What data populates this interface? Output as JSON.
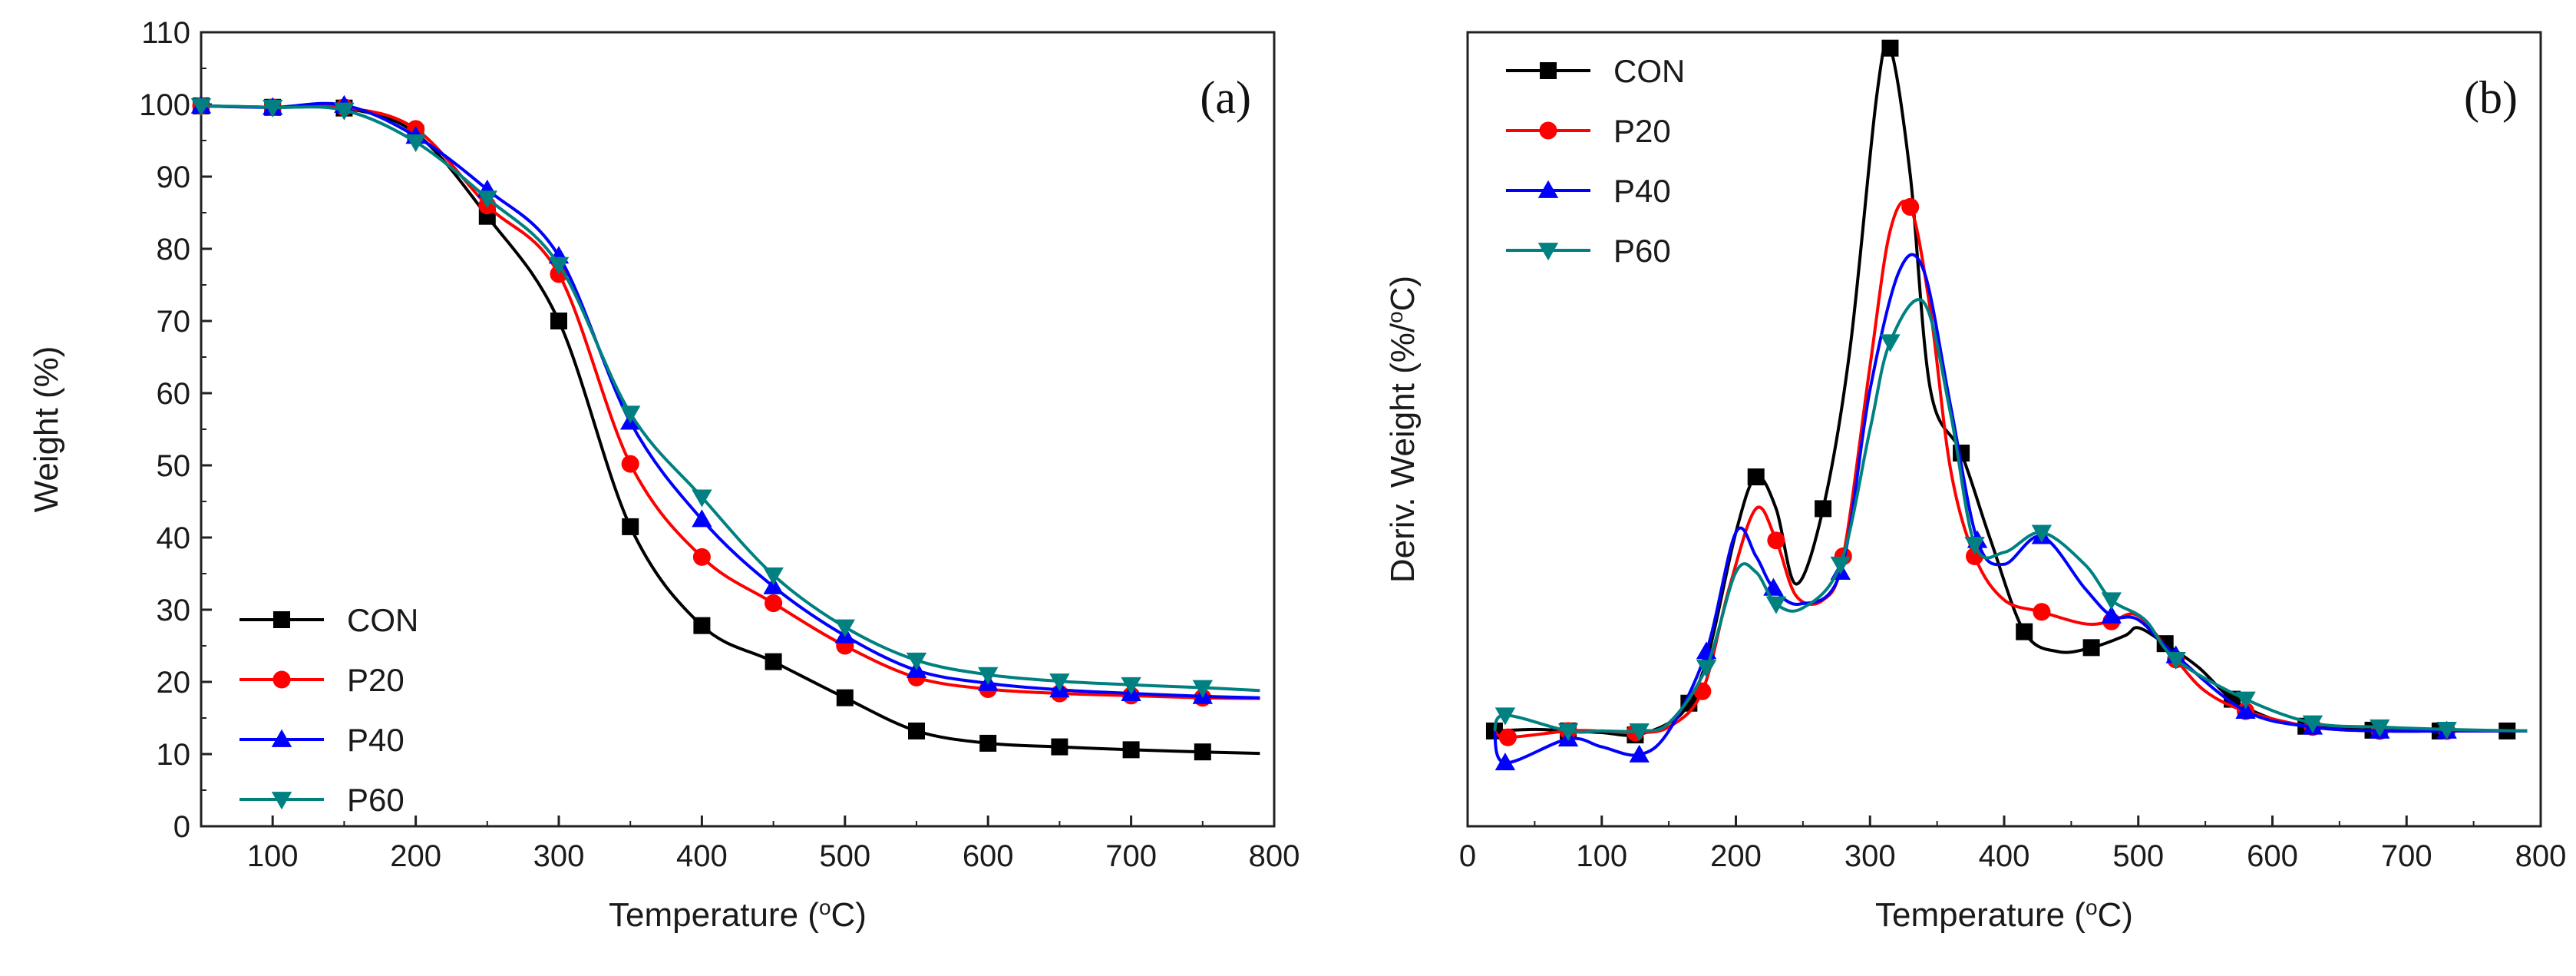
{
  "chart_data": [
    {
      "type": "line",
      "panel": "(a)",
      "xlabel": "Temperature (°C)",
      "ylabel": "Weight (%)",
      "xlim": [
        50,
        800
      ],
      "ylim": [
        0,
        110
      ],
      "xticks": [
        100,
        200,
        300,
        400,
        500,
        600,
        700,
        800
      ],
      "yticks": [
        0,
        10,
        20,
        30,
        40,
        50,
        60,
        70,
        80,
        90,
        100,
        110
      ],
      "legend_position": "bottom-left",
      "series": [
        {
          "name": "CON",
          "color": "#000000",
          "marker": "square",
          "x": [
            50,
            100,
            150,
            200,
            250,
            300,
            350,
            400,
            450,
            500,
            550,
            600,
            650,
            700,
            750,
            790
          ],
          "values": [
            99.8,
            99.6,
            99.5,
            96.0,
            84.5,
            70.0,
            41.5,
            27.8,
            22.8,
            17.8,
            13.2,
            11.5,
            11.0,
            10.6,
            10.3,
            10.1
          ]
        },
        {
          "name": "P20",
          "color": "#ff0000",
          "marker": "circle",
          "x": [
            50,
            100,
            150,
            200,
            250,
            300,
            350,
            400,
            450,
            500,
            550,
            600,
            650,
            700,
            750,
            790
          ],
          "values": [
            99.8,
            99.6,
            99.6,
            96.6,
            86.0,
            76.5,
            50.2,
            37.3,
            30.9,
            25.0,
            20.6,
            19.0,
            18.4,
            18.1,
            17.8,
            17.7
          ]
        },
        {
          "name": "P40",
          "color": "#0000ff",
          "marker": "triangle-up",
          "x": [
            50,
            100,
            150,
            200,
            250,
            300,
            350,
            400,
            450,
            500,
            550,
            600,
            650,
            700,
            750,
            790
          ],
          "values": [
            99.8,
            99.6,
            99.9,
            95.6,
            88.2,
            79.0,
            56.0,
            42.5,
            33.2,
            26.4,
            21.6,
            19.8,
            18.9,
            18.4,
            18.0,
            17.8
          ]
        },
        {
          "name": "P60",
          "color": "#008080",
          "marker": "triangle-down",
          "x": [
            50,
            100,
            150,
            200,
            250,
            300,
            350,
            400,
            450,
            500,
            550,
            600,
            650,
            700,
            750,
            790
          ],
          "values": [
            99.8,
            99.6,
            99.2,
            94.8,
            87.0,
            77.8,
            57.2,
            45.6,
            34.8,
            27.6,
            23.0,
            21.0,
            20.1,
            19.6,
            19.2,
            18.8
          ]
        }
      ]
    },
    {
      "type": "line",
      "panel": "(b)",
      "xlabel": "Temperature (°C)",
      "ylabel": "Deriv. Weight (%/°C)",
      "xlim": [
        0,
        800
      ],
      "ylim": [
        0,
        100
      ],
      "xticks": [
        0,
        100,
        200,
        300,
        400,
        500,
        600,
        700,
        800
      ],
      "yticks": [],
      "legend_position": "top-left",
      "series": [
        {
          "name": "CON",
          "color": "#000000",
          "marker": "square",
          "x": [
            20,
            50,
            75,
            100,
            125,
            150,
            165,
            180,
            200,
            215,
            230,
            245,
            265,
            285,
            305,
            315,
            330,
            345,
            368,
            390,
            415,
            440,
            465,
            490,
            500,
            520,
            545,
            570,
            600,
            625,
            650,
            675,
            700,
            725,
            750,
            775,
            790
          ],
          "values": [
            12,
            12.2,
            12,
            11.8,
            11.5,
            13,
            15.5,
            22,
            37,
            44,
            40,
            30.5,
            40,
            60,
            92,
            98,
            82,
            55,
            47,
            36,
            24.5,
            22,
            22.5,
            24,
            25,
            23,
            20,
            16,
            13.5,
            12.6,
            12.3,
            12.1,
            12,
            12,
            12,
            12,
            12
          ]
        },
        {
          "name": "P20",
          "color": "#ff0000",
          "marker": "circle",
          "x": [
            20,
            30,
            75,
            100,
            125,
            150,
            175,
            195,
            215,
            230,
            245,
            265,
            280,
            300,
            315,
            330,
            345,
            360,
            378,
            400,
            428,
            460,
            480,
            500,
            528,
            550,
            580,
            630,
            680,
            730,
            790
          ],
          "values": [
            12,
            11.2,
            12,
            12,
            11.8,
            12.5,
            17,
            30,
            40,
            36,
            29,
            28.5,
            34,
            58,
            75,
            78,
            65,
            45,
            34,
            28.5,
            27,
            25.5,
            25.8,
            26.5,
            21,
            17,
            14.5,
            12.5,
            12,
            12,
            12
          ]
        },
        {
          "name": "P40",
          "color": "#0000ff",
          "marker": "triangle-up",
          "x": [
            20,
            28,
            75,
            100,
            128,
            150,
            178,
            200,
            215,
            228,
            248,
            278,
            300,
            322,
            340,
            360,
            380,
            400,
            428,
            460,
            480,
            500,
            528,
            580,
            630,
            680,
            730,
            790
          ],
          "values": [
            12,
            8,
            11,
            10,
            9,
            12,
            22,
            37,
            34,
            30,
            28,
            32,
            55,
            70,
            70,
            53,
            36,
            33,
            36.5,
            30,
            26.5,
            26,
            21.5,
            14.5,
            12.5,
            12,
            12,
            12
          ]
        },
        {
          "name": "P60",
          "color": "#008080",
          "marker": "triangle-down",
          "x": [
            20,
            28,
            75,
            100,
            128,
            150,
            178,
            200,
            215,
            230,
            250,
            278,
            300,
            315,
            340,
            360,
            378,
            400,
            428,
            460,
            480,
            505,
            528,
            580,
            630,
            680,
            730,
            790
          ],
          "values": [
            12,
            14,
            12,
            12,
            12,
            13,
            20,
            32,
            32,
            28,
            27.5,
            33,
            50,
            61,
            66,
            52,
            35.5,
            34.5,
            37,
            33,
            28.5,
            26,
            21,
            16,
            13,
            12.5,
            12.2,
            12
          ]
        }
      ]
    }
  ]
}
